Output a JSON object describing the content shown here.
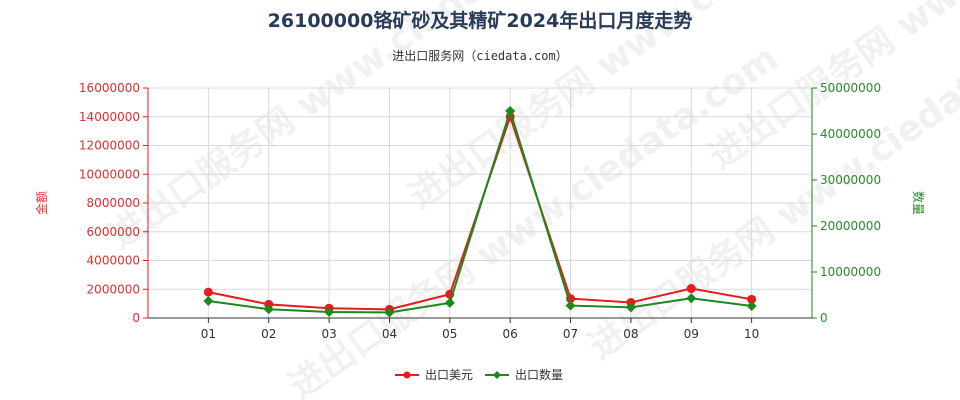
{
  "title": "26100000铬矿砂及其精矿2024年出口月度走势",
  "subtitle": "进出口服务网（ciedata.com）",
  "watermark": "进出口服务网 www.ciedata.com",
  "colors": {
    "amount": "#e61c1c",
    "quantity": "#1a8a1a",
    "grid": "#d9d9d9"
  },
  "chart_data": {
    "type": "line",
    "categories": [
      "01",
      "02",
      "03",
      "04",
      "05",
      "06",
      "07",
      "08",
      "09",
      "10"
    ],
    "y_left": {
      "label": "金额",
      "range": [
        0,
        16000000
      ],
      "ticks": [
        "0",
        "2000000",
        "4000000",
        "6000000",
        "8000000",
        "10000000",
        "12000000",
        "14000000",
        "16000000"
      ]
    },
    "y_right": {
      "label": "数量",
      "range": [
        0,
        50000000
      ],
      "ticks": [
        "0",
        "10000000",
        "20000000",
        "30000000",
        "40000000",
        "50000000"
      ]
    },
    "series": [
      {
        "name": "出口美元",
        "axis": "left",
        "values": [
          1800000,
          950000,
          680000,
          600000,
          1650000,
          14000000,
          1350000,
          1080000,
          2050000,
          1300000
        ]
      },
      {
        "name": "出口数量",
        "axis": "right",
        "values": [
          3700000,
          1900000,
          1300000,
          1200000,
          3300000,
          45000000,
          2700000,
          2300000,
          4300000,
          2600000
        ]
      }
    ],
    "grid": true,
    "legend_position": "bottom-center"
  }
}
